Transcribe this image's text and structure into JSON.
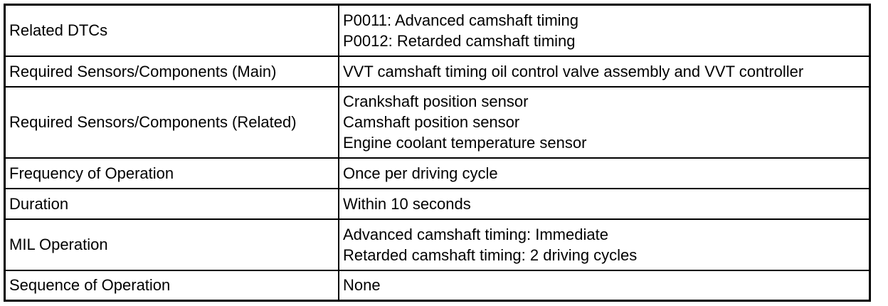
{
  "table": {
    "rows": [
      {
        "label": "Related DTCs",
        "values": [
          "P0011: Advanced camshaft timing",
          "P0012: Retarded camshaft timing"
        ]
      },
      {
        "label": "Required Sensors/Components (Main)",
        "values": [
          "VVT camshaft timing oil control valve assembly and VVT controller"
        ]
      },
      {
        "label": "Required Sensors/Components (Related)",
        "values": [
          "Crankshaft position sensor",
          "Camshaft position sensor",
          "Engine coolant temperature sensor"
        ]
      },
      {
        "label": "Frequency of Operation",
        "values": [
          "Once per driving cycle"
        ]
      },
      {
        "label": "Duration",
        "values": [
          "Within 10 seconds"
        ]
      },
      {
        "label": "MIL Operation",
        "values": [
          "Advanced camshaft timing: Immediate",
          "Retarded camshaft timing: 2 driving cycles"
        ]
      },
      {
        "label": "Sequence of Operation",
        "values": [
          "None"
        ]
      }
    ]
  },
  "colors": {
    "border": "#000000",
    "background": "#ffffff",
    "text": "#000000"
  }
}
